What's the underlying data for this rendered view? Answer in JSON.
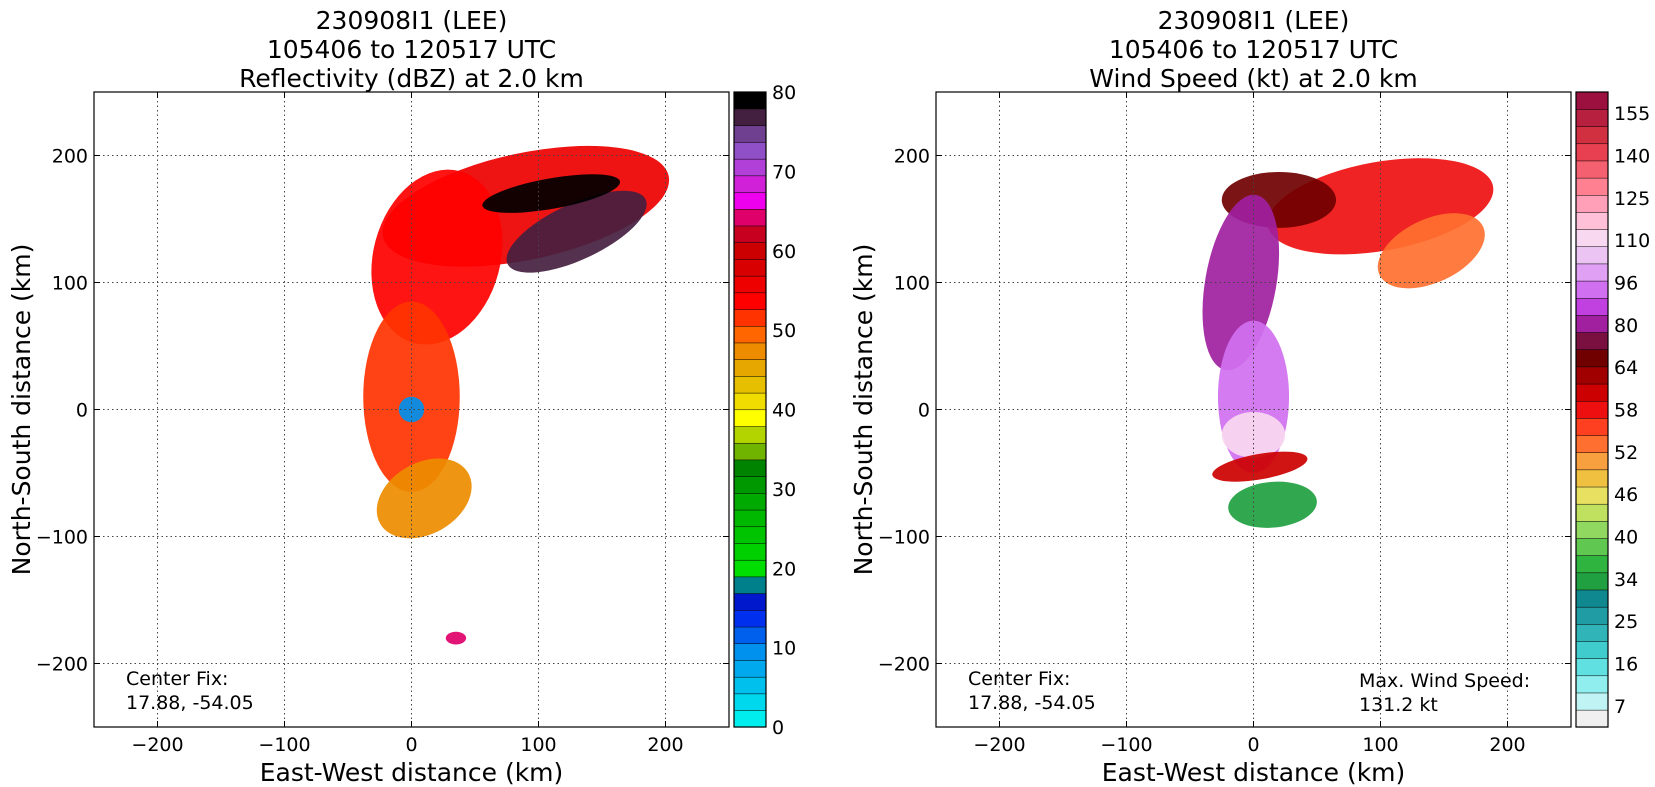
{
  "chart_data": [
    {
      "type": "heatmap",
      "title": [
        "230908I1 (LEE)",
        "105406 to 120517 UTC",
        "Reflectivity (dBZ) at 2.0 km"
      ],
      "xlabel": "East-West distance (km)",
      "ylabel": "North-South distance (km)",
      "xlim": [
        -250,
        250
      ],
      "ylim": [
        -250,
        250
      ],
      "xticks": [
        -200,
        -100,
        0,
        100,
        200
      ],
      "yticks": [
        -200,
        -100,
        0,
        100,
        200
      ],
      "xtick_labels": [
        "−200",
        "−100",
        "0",
        "100",
        "200"
      ],
      "ytick_labels": [
        "−200",
        "−100",
        "0",
        "100",
        "200"
      ],
      "grid": true,
      "annotations": [
        {
          "lines": [
            "Center Fix:",
            "17.88, -54.05"
          ],
          "position": "bottom-left"
        }
      ],
      "colorbar": {
        "min": 0,
        "max": 80,
        "ticks": [
          0,
          10,
          20,
          30,
          40,
          50,
          60,
          70,
          80
        ],
        "colors": [
          "#00eeee",
          "#00d8ee",
          "#00c0ee",
          "#00a8ee",
          "#0090ee",
          "#0060ee",
          "#0030ee",
          "#0018cc",
          "#00808a",
          "#00dd00",
          "#00d000",
          "#00c400",
          "#00b800",
          "#00aa00",
          "#009800",
          "#008400",
          "#70b400",
          "#b4d400",
          "#ffff00",
          "#f0dc00",
          "#e6c000",
          "#e6a800",
          "#ee8c00",
          "#ff6600",
          "#ff3300",
          "#ff0000",
          "#ee0000",
          "#d80000",
          "#cc0000",
          "#c80020",
          "#e0006a",
          "#ee00ee",
          "#d020d8",
          "#b040d8",
          "#9050c8",
          "#704090",
          "#442040",
          "#000000"
        ]
      },
      "field_blobs": [
        {
          "cx": 90,
          "cy": 160,
          "rx": 115,
          "ry": 42,
          "rot": -12,
          "level": 26
        },
        {
          "cx": 20,
          "cy": 120,
          "rx": 50,
          "ry": 70,
          "rot": 15,
          "level": 25
        },
        {
          "cx": 130,
          "cy": 140,
          "rx": 60,
          "ry": 22,
          "rot": -25,
          "level": 36
        },
        {
          "cx": 110,
          "cy": 170,
          "rx": 55,
          "ry": 12,
          "rot": -10,
          "level": 38
        },
        {
          "cx": 0,
          "cy": 10,
          "rx": 38,
          "ry": 75,
          "rot": 0,
          "level": 24
        },
        {
          "cx": 10,
          "cy": -70,
          "rx": 40,
          "ry": 28,
          "rot": -30,
          "level": 22
        },
        {
          "cx": 0,
          "cy": 0,
          "rx": 10,
          "ry": 10,
          "rot": 0,
          "level": 4
        },
        {
          "cx": 35,
          "cy": -180,
          "rx": 8,
          "ry": 5,
          "rot": 0,
          "level": 30
        }
      ]
    },
    {
      "type": "heatmap",
      "title": [
        "230908I1 (LEE)",
        "105406 to 120517 UTC",
        "Wind Speed (kt) at 2.0 km"
      ],
      "xlabel": "East-West distance (km)",
      "ylabel": "North-South distance (km)",
      "xlim": [
        -250,
        250
      ],
      "ylim": [
        -250,
        250
      ],
      "xticks": [
        -200,
        -100,
        0,
        100,
        200
      ],
      "yticks": [
        -200,
        -100,
        0,
        100,
        200
      ],
      "xtick_labels": [
        "−200",
        "−100",
        "0",
        "100",
        "200"
      ],
      "ytick_labels": [
        "−200",
        "−100",
        "0",
        "100",
        "200"
      ],
      "grid": true,
      "annotations": [
        {
          "lines": [
            "Center Fix:",
            "17.88, -54.05"
          ],
          "position": "bottom-left"
        },
        {
          "lines": [
            "Max. Wind Speed:",
            "131.2 kt"
          ],
          "position": "bottom-right"
        }
      ],
      "colorbar": {
        "tick_labels": [
          "7",
          "16",
          "25",
          "34",
          "40",
          "46",
          "52",
          "58",
          "64",
          "80",
          "96",
          "110",
          "125",
          "140",
          "155"
        ],
        "colors": [
          "#f0f0f0",
          "#c0f4f4",
          "#90eeee",
          "#60e0e0",
          "#40cccc",
          "#30b4b8",
          "#209ca4",
          "#108890",
          "#20a040",
          "#30b440",
          "#60c850",
          "#90d860",
          "#c0e060",
          "#e8e060",
          "#f0c040",
          "#f8a040",
          "#ff7030",
          "#ff4020",
          "#ee1010",
          "#cc0000",
          "#a00000",
          "#700000",
          "#7a1040",
          "#a020a0",
          "#c040e0",
          "#d070f0",
          "#e0a0f4",
          "#ecc4f4",
          "#f8d8f0",
          "#ffc0d8",
          "#ffa0b8",
          "#ff8090",
          "#f46070",
          "#e84050",
          "#d03040",
          "#b82040",
          "#9c1040"
        ]
      },
      "max_wind_speed_kt": 131.2,
      "field_blobs": [
        {
          "cx": 100,
          "cy": 160,
          "rx": 90,
          "ry": 35,
          "rot": -10,
          "level": 18
        },
        {
          "cx": 20,
          "cy": 165,
          "rx": 45,
          "ry": 22,
          "rot": 0,
          "level": 21
        },
        {
          "cx": 140,
          "cy": 125,
          "rx": 45,
          "ry": 25,
          "rot": -25,
          "level": 16
        },
        {
          "cx": -10,
          "cy": 100,
          "rx": 28,
          "ry": 70,
          "rot": 10,
          "level": 23
        },
        {
          "cx": 0,
          "cy": 10,
          "rx": 28,
          "ry": 60,
          "rot": 0,
          "level": 25
        },
        {
          "cx": 0,
          "cy": -20,
          "rx": 25,
          "ry": 18,
          "rot": 0,
          "level": 28
        },
        {
          "cx": 5,
          "cy": -45,
          "rx": 38,
          "ry": 10,
          "rot": -10,
          "level": 19
        },
        {
          "cx": 15,
          "cy": -75,
          "rx": 35,
          "ry": 18,
          "rot": -5,
          "level": 8
        }
      ]
    }
  ]
}
